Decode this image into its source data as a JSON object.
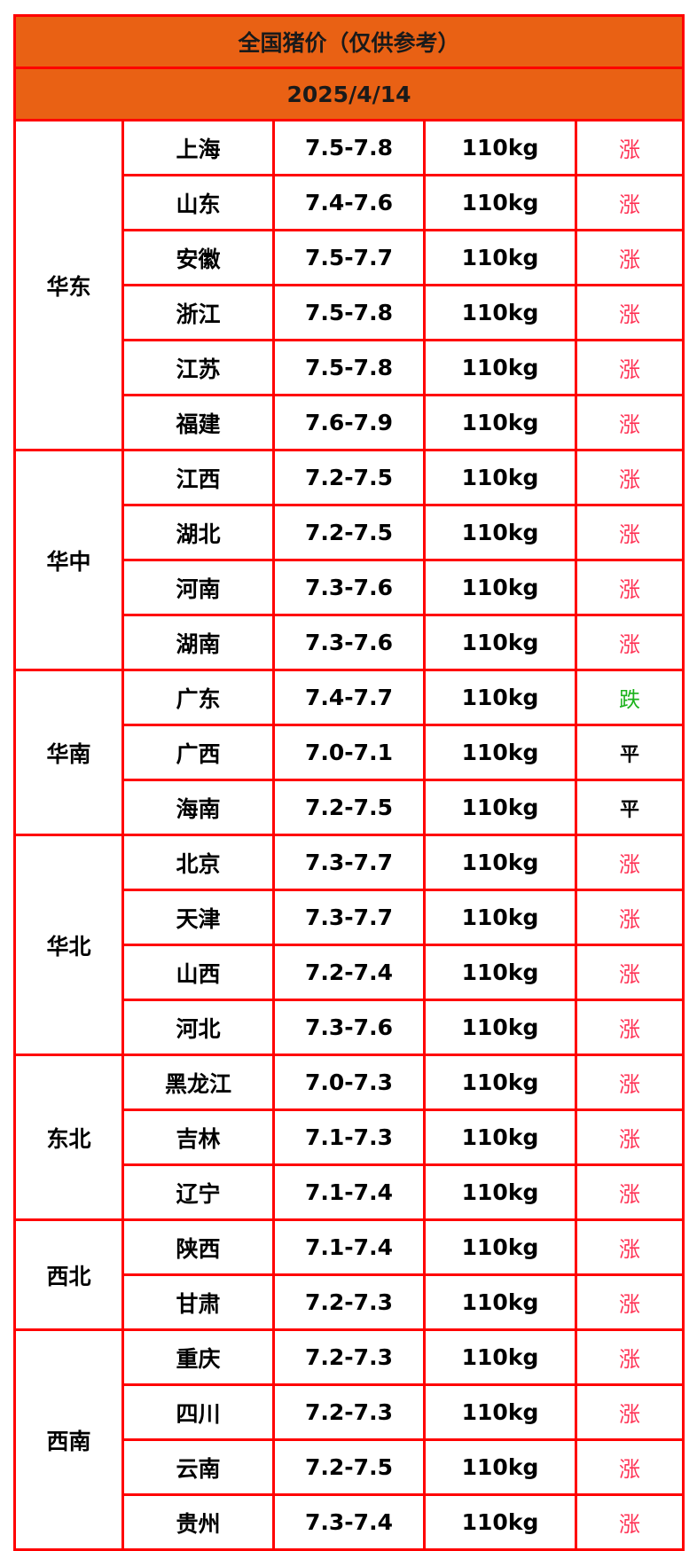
{
  "title": "全国猪价（仅供参考）",
  "date": "2025/4/14",
  "colors": {
    "header_bg": "#e96114",
    "border": "#ff0000",
    "up": "#ff3355",
    "down": "#1bb21b",
    "flat": "#000000"
  },
  "regions": [
    {
      "name": "华东",
      "rows": [
        {
          "province": "上海",
          "price": "7.5-7.8",
          "weight": "110kg",
          "trend": "涨"
        },
        {
          "province": "山东",
          "price": "7.4-7.6",
          "weight": "110kg",
          "trend": "涨"
        },
        {
          "province": "安徽",
          "price": "7.5-7.7",
          "weight": "110kg",
          "trend": "涨"
        },
        {
          "province": "浙江",
          "price": "7.5-7.8",
          "weight": "110kg",
          "trend": "涨"
        },
        {
          "province": "江苏",
          "price": "7.5-7.8",
          "weight": "110kg",
          "trend": "涨"
        },
        {
          "province": "福建",
          "price": "7.6-7.9",
          "weight": "110kg",
          "trend": "涨"
        }
      ]
    },
    {
      "name": "华中",
      "rows": [
        {
          "province": "江西",
          "price": "7.2-7.5",
          "weight": "110kg",
          "trend": "涨"
        },
        {
          "province": "湖北",
          "price": "7.2-7.5",
          "weight": "110kg",
          "trend": "涨"
        },
        {
          "province": "河南",
          "price": "7.3-7.6",
          "weight": "110kg",
          "trend": "涨"
        },
        {
          "province": "湖南",
          "price": "7.3-7.6",
          "weight": "110kg",
          "trend": "涨"
        }
      ]
    },
    {
      "name": "华南",
      "rows": [
        {
          "province": "广东",
          "price": "7.4-7.7",
          "weight": "110kg",
          "trend": "跌"
        },
        {
          "province": "广西",
          "price": "7.0-7.1",
          "weight": "110kg",
          "trend": "平"
        },
        {
          "province": "海南",
          "price": "7.2-7.5",
          "weight": "110kg",
          "trend": "平"
        }
      ]
    },
    {
      "name": "华北",
      "rows": [
        {
          "province": "北京",
          "price": "7.3-7.7",
          "weight": "110kg",
          "trend": "涨"
        },
        {
          "province": "天津",
          "price": "7.3-7.7",
          "weight": "110kg",
          "trend": "涨"
        },
        {
          "province": "山西",
          "price": "7.2-7.4",
          "weight": "110kg",
          "trend": "涨"
        },
        {
          "province": "河北",
          "price": "7.3-7.6",
          "weight": "110kg",
          "trend": "涨"
        }
      ]
    },
    {
      "name": "东北",
      "rows": [
        {
          "province": "黑龙江",
          "price": "7.0-7.3",
          "weight": "110kg",
          "trend": "涨"
        },
        {
          "province": "吉林",
          "price": "7.1-7.3",
          "weight": "110kg",
          "trend": "涨"
        },
        {
          "province": "辽宁",
          "price": "7.1-7.4",
          "weight": "110kg",
          "trend": "涨"
        }
      ]
    },
    {
      "name": "西北",
      "rows": [
        {
          "province": "陕西",
          "price": "7.1-7.4",
          "weight": "110kg",
          "trend": "涨"
        },
        {
          "province": "甘肃",
          "price": "7.2-7.3",
          "weight": "110kg",
          "trend": "涨"
        }
      ]
    },
    {
      "name": "西南",
      "rows": [
        {
          "province": "重庆",
          "price": "7.2-7.3",
          "weight": "110kg",
          "trend": "涨"
        },
        {
          "province": "四川",
          "price": "7.2-7.3",
          "weight": "110kg",
          "trend": "涨"
        },
        {
          "province": "云南",
          "price": "7.2-7.5",
          "weight": "110kg",
          "trend": "涨"
        },
        {
          "province": "贵州",
          "price": "7.3-7.4",
          "weight": "110kg",
          "trend": "涨"
        }
      ]
    }
  ]
}
